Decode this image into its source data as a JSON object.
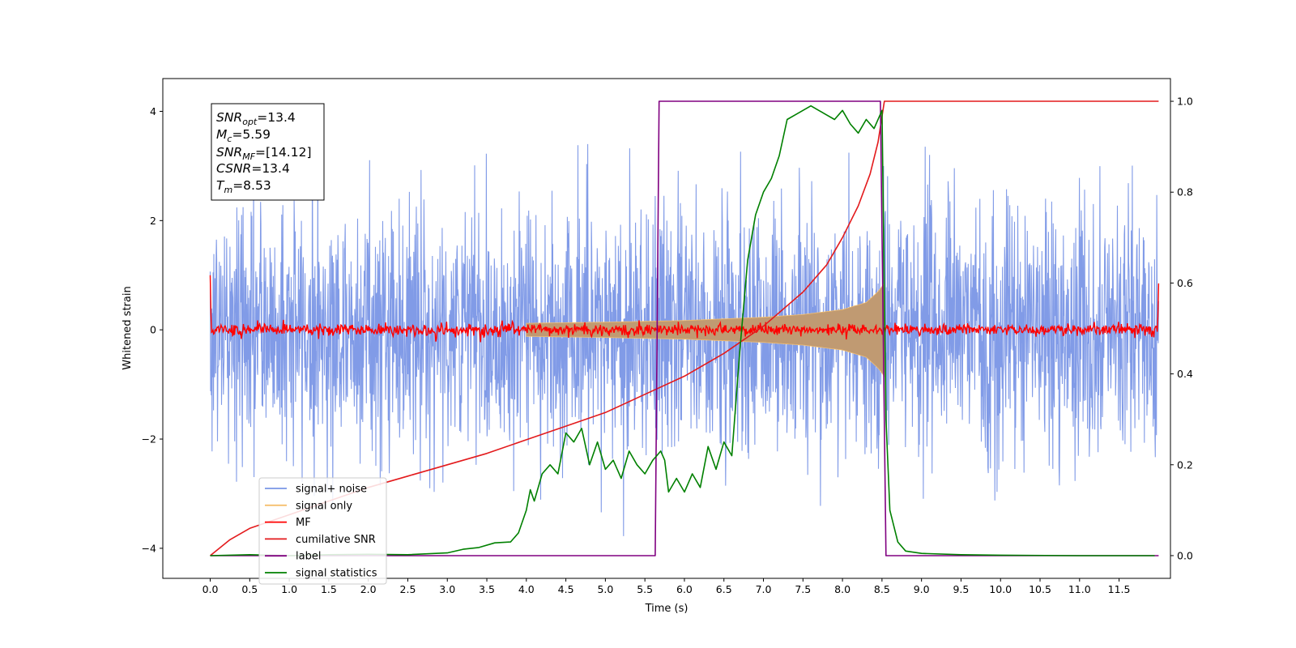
{
  "chart_data": {
    "type": "line",
    "xlabel": "Time (s)",
    "ylabel": "Whitened strain",
    "xlim": [
      -0.6,
      12.15
    ],
    "ylim_left": [
      -4.55,
      4.6
    ],
    "ylim_right": [
      -0.05,
      1.05
    ],
    "x_ticks": [
      "0.0",
      "0.5",
      "1.0",
      "1.5",
      "2.0",
      "2.5",
      "3.0",
      "3.5",
      "4.0",
      "4.5",
      "5.0",
      "5.5",
      "6.0",
      "6.5",
      "7.0",
      "7.5",
      "8.0",
      "8.5",
      "9.0",
      "9.5",
      "10.0",
      "10.5",
      "11.0",
      "11.5"
    ],
    "y_ticks_left": [
      "4",
      "2",
      "0",
      "−2",
      "−4"
    ],
    "y_ticks_right": [
      "1.0",
      "0.8",
      "0.6",
      "0.4",
      "0.2",
      "0.0"
    ],
    "grid": false,
    "legend_placement": "lower-left",
    "info_box": {
      "snr_opt": {
        "base": "SNR",
        "sub": "opt",
        "value": "=13.4"
      },
      "mc": {
        "base": "M",
        "sub": "c",
        "value": "=5.59"
      },
      "snr_mf": {
        "base": "SNR",
        "sub": "MF",
        "value": "=[14.12]"
      },
      "csnr": {
        "base": "CSNR",
        "sub": "",
        "value": "=13.4"
      },
      "tm": {
        "base": "T",
        "sub": "m",
        "value": "=8.53"
      }
    },
    "series": [
      {
        "name": "signal+ noise",
        "color": "#7a96e6",
        "axis": "left",
        "description": "noise band approx -2.5 to 2.5 with peaks to about +/-3.5 over 0 to 12 s"
      },
      {
        "name": "signal only",
        "color": "#f5bf6e",
        "axis": "left",
        "envelope": {
          "x": [
            4.0,
            5.0,
            6.0,
            7.0,
            7.5,
            8.0,
            8.3,
            8.45,
            8.53
          ],
          "amp": [
            0.12,
            0.14,
            0.17,
            0.23,
            0.28,
            0.37,
            0.5,
            0.7,
            0.85
          ]
        }
      },
      {
        "name": "MF",
        "color": "#ff0000",
        "axis": "left",
        "description": "noisy trace near 0 with amplitude about 0.1"
      },
      {
        "name": "cumilative SNR",
        "color": "#e31a1c",
        "axis": "right",
        "x": [
          0.0,
          0.25,
          0.5,
          1.0,
          1.5,
          2.0,
          2.5,
          3.0,
          3.5,
          4.0,
          4.5,
          5.0,
          5.5,
          6.0,
          6.5,
          7.0,
          7.5,
          7.8,
          8.0,
          8.2,
          8.35,
          8.45,
          8.53,
          9.0,
          10.0,
          11.0,
          11.5,
          12.0
        ],
        "values": [
          0.0,
          0.035,
          0.06,
          0.09,
          0.12,
          0.15,
          0.175,
          0.2,
          0.225,
          0.255,
          0.285,
          0.315,
          0.355,
          0.395,
          0.445,
          0.505,
          0.58,
          0.64,
          0.7,
          0.77,
          0.84,
          0.91,
          1.0,
          1.0,
          1.0,
          1.0,
          1.0,
          1.0
        ]
      },
      {
        "name": "label",
        "color": "#800080",
        "axis": "right",
        "x": [
          0.0,
          5.63,
          5.68,
          8.48,
          8.55,
          12.0
        ],
        "values": [
          0.0,
          0.0,
          1.0,
          1.0,
          0.0,
          0.0
        ]
      },
      {
        "name": "signal statistics",
        "color": "#008000",
        "axis": "right",
        "x": [
          0.0,
          0.5,
          1.0,
          1.5,
          2.0,
          2.5,
          3.0,
          3.2,
          3.4,
          3.6,
          3.8,
          3.9,
          4.0,
          4.05,
          4.1,
          4.2,
          4.3,
          4.4,
          4.5,
          4.6,
          4.7,
          4.8,
          4.9,
          5.0,
          5.1,
          5.2,
          5.3,
          5.4,
          5.5,
          5.6,
          5.65,
          5.7,
          5.75,
          5.8,
          5.9,
          6.0,
          6.1,
          6.2,
          6.3,
          6.4,
          6.5,
          6.6,
          6.7,
          6.8,
          6.9,
          7.0,
          7.1,
          7.2,
          7.3,
          7.4,
          7.5,
          7.6,
          7.7,
          7.8,
          7.9,
          8.0,
          8.1,
          8.2,
          8.3,
          8.4,
          8.5,
          8.55,
          8.6,
          8.7,
          8.8,
          9.0,
          9.5,
          10.0,
          11.0,
          11.5,
          11.95
        ],
        "values": [
          0.0,
          0.002,
          0.0,
          0.002,
          0.003,
          0.002,
          0.006,
          0.014,
          0.018,
          0.028,
          0.03,
          0.05,
          0.1,
          0.145,
          0.12,
          0.18,
          0.2,
          0.18,
          0.27,
          0.25,
          0.28,
          0.2,
          0.25,
          0.19,
          0.21,
          0.17,
          0.23,
          0.2,
          0.18,
          0.21,
          0.22,
          0.23,
          0.21,
          0.14,
          0.17,
          0.14,
          0.18,
          0.15,
          0.24,
          0.19,
          0.25,
          0.22,
          0.45,
          0.65,
          0.75,
          0.8,
          0.83,
          0.88,
          0.96,
          0.97,
          0.98,
          0.99,
          0.98,
          0.97,
          0.96,
          0.98,
          0.95,
          0.93,
          0.96,
          0.94,
          0.98,
          0.3,
          0.1,
          0.03,
          0.01,
          0.005,
          0.002,
          0.001,
          0.0,
          0.0,
          0.0
        ]
      }
    ]
  }
}
